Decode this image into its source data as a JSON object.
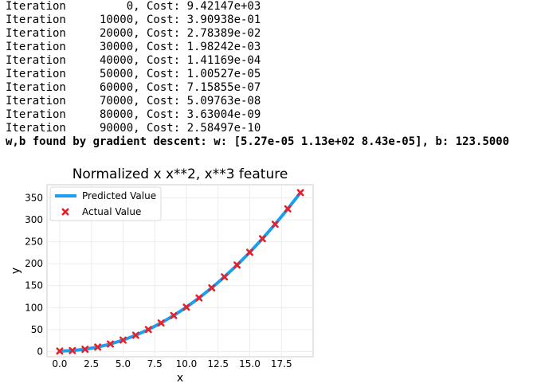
{
  "log": {
    "lines": [
      "Iteration         0, Cost: 9.42147e+03",
      "Iteration     10000, Cost: 3.90938e-01",
      "Iteration     20000, Cost: 2.78389e-02",
      "Iteration     30000, Cost: 1.98242e-03",
      "Iteration     40000, Cost: 1.41169e-04",
      "Iteration     50000, Cost: 1.00527e-05",
      "Iteration     60000, Cost: 7.15855e-07",
      "Iteration     70000, Cost: 5.09763e-08",
      "Iteration     80000, Cost: 3.63004e-09",
      "Iteration     90000, Cost: 2.58497e-10"
    ],
    "summary": "w,b found by gradient descent: w: [5.27e-05 1.13e+02 8.43e-05], b: 123.5000"
  },
  "chart_data": {
    "type": "line",
    "title": "Normalized x x**2, x**3 feature",
    "xlabel": "x",
    "ylabel": "y",
    "xlim": [
      -1,
      20
    ],
    "ylim": [
      -12,
      380
    ],
    "xticks": [
      0,
      2.5,
      5,
      7.5,
      10,
      12.5,
      15,
      17.5
    ],
    "xtick_labels": [
      "0.0",
      "2.5",
      "5.0",
      "7.5",
      "10.0",
      "12.5",
      "15.0",
      "17.5"
    ],
    "yticks": [
      0,
      50,
      100,
      150,
      200,
      250,
      300,
      350
    ],
    "ytick_labels": [
      "0",
      "50",
      "100",
      "150",
      "200",
      "250",
      "300",
      "350"
    ],
    "grid": true,
    "legend_position": "top-left",
    "x": [
      0,
      1,
      2,
      3,
      4,
      5,
      6,
      7,
      8,
      9,
      10,
      11,
      12,
      13,
      14,
      15,
      16,
      17,
      18,
      19
    ],
    "series": [
      {
        "name": "Predicted Value",
        "kind": "line",
        "color": "#1aa0f0",
        "values": [
          1,
          2,
          5,
          10,
          17,
          26,
          37,
          50,
          65,
          82,
          101,
          122,
          145,
          170,
          197,
          226,
          257,
          290,
          325,
          362
        ]
      },
      {
        "name": "Actual Value",
        "kind": "scatter",
        "color": "#e8202a",
        "marker": "x",
        "values": [
          1,
          2,
          5,
          10,
          17,
          26,
          37,
          50,
          65,
          82,
          101,
          122,
          145,
          170,
          197,
          226,
          257,
          290,
          325,
          362
        ]
      }
    ]
  }
}
